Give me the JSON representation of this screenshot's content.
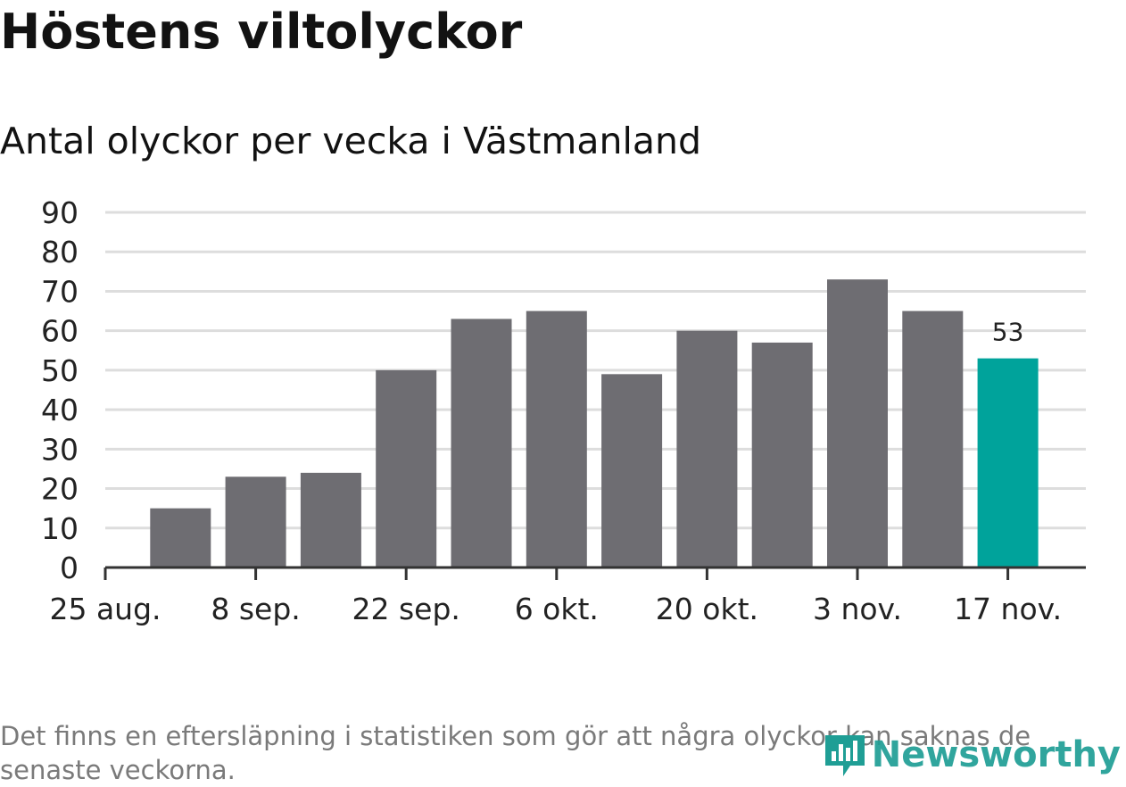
{
  "title": "Höstens viltolyckor",
  "subtitle": "Antal olyckor per vecka i Västmanland",
  "footnote": "Det finns en eftersläpning i statistiken som gör att några olyckor kan saknas de senaste veckorna.",
  "logo": {
    "text": "Newsworthy",
    "icon": "newsworthy-logo-icon"
  },
  "colors": {
    "bar": "#6e6d72",
    "highlight": "#00a39b",
    "grid": "#dddddd",
    "axis": "#333333"
  },
  "chart_data": {
    "type": "bar",
    "x_axis_type": "date",
    "categories": [
      "2019-09-01",
      "2019-09-08",
      "2019-09-15",
      "2019-09-22",
      "2019-09-29",
      "2019-10-06",
      "2019-10-13",
      "2019-10-20",
      "2019-10-27",
      "2019-11-03",
      "2019-11-10",
      "2019-11-17"
    ],
    "values": [
      15,
      23,
      24,
      50,
      63,
      65,
      49,
      60,
      57,
      73,
      65,
      53
    ],
    "highlight_last": true,
    "data_labels": [
      "",
      "",
      "",
      "",
      "",
      "",
      "",
      "",
      "",
      "",
      "",
      "53"
    ],
    "x_ticks": [
      "25 aug.",
      "8 sep.",
      "22 sep.",
      "6 okt.",
      "20 okt.",
      "3 nov.",
      "17 nov."
    ],
    "y_ticks": [
      "0",
      "10",
      "20",
      "30",
      "40",
      "50",
      "60",
      "70",
      "80",
      "90"
    ],
    "ylim": [
      0,
      90
    ],
    "grid": true,
    "title": "Höstens viltolyckor",
    "subtitle": "Antal olyckor per vecka i Västmanland",
    "xlabel": "",
    "ylabel": ""
  }
}
